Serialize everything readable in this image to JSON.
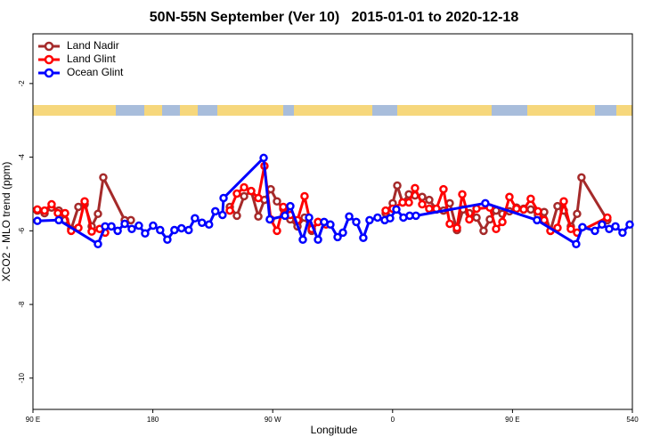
{
  "chart_data": {
    "type": "line",
    "title": "50N-55N September (Ver 10)   2015-01-01 to 2020-12-18",
    "xlabel": "Longitude",
    "ylabel": "XCO2 - MLO trend (ppm)",
    "xlim": [
      90,
      540
    ],
    "ylim": [
      -10.85,
      -0.65
    ],
    "xticks": [
      {
        "value": 90,
        "label": "90 E"
      },
      180,
      {
        "value": 270,
        "label": "90 W"
      },
      {
        "value": 360,
        "label": "0"
      },
      {
        "value": 450,
        "label": "90 E"
      },
      540
    ],
    "yticks": [
      -2,
      -4,
      -6,
      -8,
      -10
    ],
    "legend": "upper left",
    "series": [
      {
        "name": "Land Nadir",
        "color": "#a52a2a",
        "x": [
          93.3,
          98.7,
          104,
          109.4,
          114.1,
          118.7,
          124.1,
          128.8,
          134.1,
          138.8,
          142.8,
          158.9,
          163.5,
          200,
          237.8,
          243.1,
          248.5,
          253.8,
          259.2,
          263.8,
          268.5,
          273.2,
          277.9,
          283.2,
          288.6,
          293.9,
          299.3,
          304,
          330,
          354.8,
          360.1,
          363.5,
          367.5,
          372.2,
          376.8,
          382.2,
          387.5,
          392.9,
          398.2,
          402.9,
          408.3,
          412.9,
          417.6,
          423,
          428.3,
          433,
          437.7,
          442.4,
          447.7,
          453,
          458.4,
          463.7,
          469.1,
          473.8,
          478.5,
          483.8,
          488.5,
          493.8,
          498.5,
          501.8,
          521.2
        ],
        "values": [
          -5.45,
          -5.52,
          -5.37,
          -5.45,
          -5.71,
          -5.95,
          -5.35,
          -5.28,
          -5.88,
          -5.54,
          -4.55,
          -5.71,
          -5.71,
          null,
          -5.35,
          -5.59,
          -5.06,
          -4.92,
          -5.61,
          -5.16,
          -4.87,
          -5.2,
          -5.4,
          -5.69,
          -5.88,
          -5.64,
          -6.0,
          -5.76,
          null,
          -5.52,
          -5.25,
          -4.77,
          -5.23,
          -5.01,
          -5.04,
          -5.08,
          -5.16,
          -5.42,
          -5.45,
          -5.25,
          -5.98,
          -5.42,
          -5.52,
          -5.64,
          -6.0,
          -5.69,
          -5.45,
          -5.54,
          -5.47,
          -5.37,
          -5.4,
          -5.42,
          -5.57,
          -5.49,
          -6.0,
          -5.33,
          -5.45,
          -5.88,
          -5.54,
          -4.55,
          -5.71
        ]
      },
      {
        "name": "Land Glint",
        "color": "#ff0000",
        "x": [
          93.3,
          98.7,
          104,
          108.7,
          114.1,
          118.7,
          124.1,
          128.8,
          134.1,
          140.1,
          144.2,
          190,
          237.8,
          243.1,
          248.5,
          253.8,
          259.2,
          263.8,
          268.5,
          273.2,
          277.9,
          283.2,
          288.6,
          293.9,
          299.3,
          304,
          310,
          330,
          354.8,
          360.1,
          367.5,
          372.2,
          376.8,
          382.2,
          387.5,
          392.9,
          398.2,
          402.9,
          408.3,
          412.3,
          417.6,
          423,
          433,
          437.7,
          442.4,
          447.7,
          453,
          458.4,
          463.7,
          469.1,
          473.8,
          478.5,
          483.8,
          488.5,
          493.8,
          498.5,
          521.2
        ],
        "values": [
          -5.42,
          -5.45,
          -5.28,
          -5.52,
          -5.52,
          -6.0,
          -5.92,
          -5.2,
          -6.02,
          -5.95,
          -6.05,
          null,
          -5.45,
          -4.99,
          -4.82,
          -4.92,
          -5.11,
          -4.24,
          -5.69,
          -6.0,
          -5.35,
          -5.57,
          -5.71,
          -5.06,
          -5.95,
          -5.76,
          -5.83,
          null,
          -5.45,
          -5.4,
          -5.23,
          -5.23,
          -4.84,
          -5.28,
          -5.4,
          -5.4,
          -4.87,
          -5.81,
          -5.92,
          -5.01,
          -5.69,
          -5.4,
          -5.37,
          -5.95,
          -5.76,
          -5.08,
          -5.4,
          -5.42,
          -5.13,
          -5.47,
          -5.71,
          -6.0,
          -5.92,
          -5.2,
          -5.95,
          -6.05,
          -5.64
        ]
      },
      {
        "name": "Ocean Glint",
        "color": "#0000ff",
        "x": [
          93.3,
          109.4,
          138.8,
          144.2,
          148.9,
          153.6,
          158.9,
          164.2,
          169.5,
          174.2,
          180.2,
          185.5,
          190.9,
          196.2,
          201.5,
          206.9,
          211.6,
          216.9,
          222.2,
          226.9,
          232.3,
          233.1,
          263.2,
          267.8,
          279.2,
          283.2,
          292.6,
          297.3,
          304,
          308.6,
          313.3,
          318.7,
          322.7,
          327.4,
          332.7,
          338,
          342.7,
          348.7,
          354.1,
          358.1,
          362.8,
          368.1,
          372.8,
          377.5,
          429.6,
          468.4,
          497.8,
          502.5,
          511.9,
          517.2,
          522.6,
          527.3,
          532.6,
          538
        ],
        "values": [
          -5.73,
          -5.71,
          -6.36,
          -5.88,
          -5.88,
          -6.0,
          -5.81,
          -5.95,
          -5.86,
          -6.07,
          -5.86,
          -5.98,
          -6.24,
          -5.98,
          -5.93,
          -5.98,
          -5.66,
          -5.78,
          -5.83,
          -5.47,
          -5.57,
          -5.11,
          -4.02,
          -5.69,
          -5.59,
          -5.33,
          -6.24,
          -5.64,
          -6.24,
          -5.76,
          -5.83,
          -6.17,
          -6.05,
          -5.61,
          -5.76,
          -6.19,
          -5.71,
          -5.64,
          -5.71,
          -5.66,
          -5.42,
          -5.64,
          -5.59,
          -5.59,
          -5.25,
          -5.71,
          -6.36,
          -5.9,
          -6.0,
          -5.83,
          -5.95,
          -5.88,
          -6.05,
          -5.83
        ]
      }
    ]
  }
}
